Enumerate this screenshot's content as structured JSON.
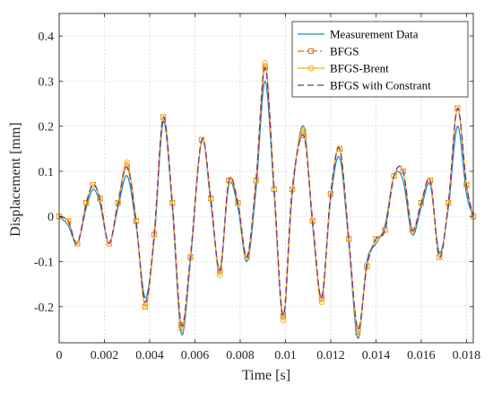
{
  "chart_data": {
    "type": "line",
    "xlabel": "Time [s]",
    "ylabel": "Displacement [mm]",
    "xlim": [
      0,
      0.0183
    ],
    "ylim": [
      -0.28,
      0.45
    ],
    "xticks": [
      0,
      0.002,
      0.004,
      0.006,
      0.008,
      0.01,
      0.012,
      0.014,
      0.016,
      0.018
    ],
    "xtick_labels": [
      "0",
      "0.002",
      "0.004",
      "0.006",
      "0.008",
      "0.01",
      "0.012",
      "0.014",
      "0.016",
      "0.018"
    ],
    "yticks": [
      -0.2,
      -0.1,
      0,
      0.1,
      0.2,
      0.3,
      0.4
    ],
    "ytick_labels": [
      "-0.2",
      "-0.1",
      "0",
      "0.1",
      "0.2",
      "0.3",
      "0.4"
    ],
    "grid": true,
    "legend_position": "top-right",
    "series": [
      {
        "name": "Measurement Data",
        "color": "#1a8fbf",
        "style": "solid",
        "marker": "none",
        "x": [
          0,
          0.0004,
          0.0008,
          0.0012,
          0.0015,
          0.0018,
          0.0022,
          0.0026,
          0.003,
          0.0034,
          0.0038,
          0.0042,
          0.0046,
          0.005,
          0.0054,
          0.0058,
          0.0063,
          0.0067,
          0.0071,
          0.0075,
          0.0079,
          0.0083,
          0.0087,
          0.0091,
          0.0095,
          0.0099,
          0.0103,
          0.0108,
          0.0112,
          0.0116,
          0.012,
          0.0124,
          0.0128,
          0.0132,
          0.0136,
          0.014,
          0.0144,
          0.0148,
          0.0152,
          0.0156,
          0.016,
          0.0164,
          0.0168,
          0.0172,
          0.0176,
          0.018,
          0.0183
        ],
        "y": [
          0,
          -0.02,
          -0.06,
          0.02,
          0.06,
          0.03,
          -0.06,
          0.02,
          0.09,
          -0.02,
          -0.18,
          -0.05,
          0.21,
          0.02,
          -0.26,
          -0.1,
          0.17,
          0.03,
          -0.12,
          0.07,
          0.02,
          -0.1,
          0.06,
          0.3,
          0.05,
          -0.23,
          0.05,
          0.2,
          -0.02,
          -0.18,
          0.04,
          0.13,
          -0.06,
          -0.27,
          -0.1,
          -0.06,
          -0.02,
          0.09,
          0.08,
          -0.04,
          0.02,
          0.07,
          -0.08,
          0.02,
          0.2,
          0.05,
          0
        ]
      },
      {
        "name": "BFGS",
        "color": "#e0701b",
        "style": "dashdot",
        "marker": "square",
        "x": [
          0,
          0.0004,
          0.0008,
          0.0012,
          0.0015,
          0.0018,
          0.0022,
          0.0026,
          0.003,
          0.0034,
          0.0038,
          0.0042,
          0.0046,
          0.005,
          0.0054,
          0.0058,
          0.0063,
          0.0067,
          0.0071,
          0.0075,
          0.0079,
          0.0083,
          0.0087,
          0.0091,
          0.0095,
          0.0099,
          0.0103,
          0.0108,
          0.0112,
          0.0116,
          0.012,
          0.0124,
          0.0128,
          0.0132,
          0.0136,
          0.014,
          0.0144,
          0.0148,
          0.0152,
          0.0156,
          0.016,
          0.0164,
          0.0168,
          0.0172,
          0.0176,
          0.018,
          0.0183
        ],
        "y": [
          0,
          -0.01,
          -0.06,
          0.03,
          0.07,
          0.04,
          -0.06,
          0.03,
          0.11,
          -0.01,
          -0.2,
          -0.04,
          0.22,
          0.03,
          -0.24,
          -0.09,
          0.17,
          0.04,
          -0.12,
          0.08,
          0.03,
          -0.09,
          0.08,
          0.33,
          0.06,
          -0.22,
          0.06,
          0.18,
          -0.01,
          -0.18,
          0.05,
          0.15,
          -0.05,
          -0.25,
          -0.11,
          -0.05,
          -0.03,
          0.09,
          0.1,
          -0.03,
          0.03,
          0.08,
          -0.09,
          0.03,
          0.24,
          0.07,
          0
        ]
      },
      {
        "name": "BFGS-Brent",
        "color": "#f2b21c",
        "style": "solid",
        "marker": "circle",
        "x": [
          0,
          0.0004,
          0.0008,
          0.0012,
          0.0015,
          0.0018,
          0.0022,
          0.0026,
          0.003,
          0.0034,
          0.0038,
          0.0042,
          0.0046,
          0.005,
          0.0054,
          0.0058,
          0.0063,
          0.0067,
          0.0071,
          0.0075,
          0.0079,
          0.0083,
          0.0087,
          0.0091,
          0.0095,
          0.0099,
          0.0103,
          0.0108,
          0.0112,
          0.0116,
          0.012,
          0.0124,
          0.0128,
          0.0132,
          0.0136,
          0.014,
          0.0144,
          0.0148,
          0.0152,
          0.0156,
          0.016,
          0.0164,
          0.0168,
          0.0172,
          0.0176,
          0.018,
          0.0183
        ],
        "y": [
          0,
          -0.01,
          -0.06,
          0.03,
          0.07,
          0.04,
          -0.06,
          0.03,
          0.12,
          -0.01,
          -0.2,
          -0.04,
          0.22,
          0.03,
          -0.25,
          -0.09,
          0.17,
          0.04,
          -0.13,
          0.08,
          0.03,
          -0.09,
          0.08,
          0.34,
          0.06,
          -0.23,
          0.06,
          0.19,
          -0.01,
          -0.19,
          0.05,
          0.15,
          -0.05,
          -0.26,
          -0.11,
          -0.05,
          -0.03,
          0.09,
          0.1,
          -0.03,
          0.03,
          0.08,
          -0.09,
          0.03,
          0.24,
          0.07,
          0
        ]
      },
      {
        "name": "BFGS with Constrant",
        "color": "#7e2f8e",
        "style": "dashed",
        "marker": "none",
        "x": [
          0,
          0.0004,
          0.0008,
          0.0012,
          0.0015,
          0.0018,
          0.0022,
          0.0026,
          0.003,
          0.0034,
          0.0038,
          0.0042,
          0.0046,
          0.005,
          0.0054,
          0.0058,
          0.0063,
          0.0067,
          0.0071,
          0.0075,
          0.0079,
          0.0083,
          0.0087,
          0.0091,
          0.0095,
          0.0099,
          0.0103,
          0.0108,
          0.0112,
          0.0116,
          0.012,
          0.0124,
          0.0128,
          0.0132,
          0.0136,
          0.014,
          0.0144,
          0.0148,
          0.0152,
          0.0156,
          0.016,
          0.0164,
          0.0168,
          0.0172,
          0.0176,
          0.018,
          0.0183
        ],
        "y": [
          0,
          -0.01,
          -0.06,
          0.03,
          0.07,
          0.04,
          -0.06,
          0.03,
          0.11,
          -0.01,
          -0.19,
          -0.04,
          0.22,
          0.03,
          -0.24,
          -0.09,
          0.17,
          0.04,
          -0.12,
          0.08,
          0.03,
          -0.09,
          0.08,
          0.33,
          0.06,
          -0.22,
          0.06,
          0.18,
          -0.01,
          -0.18,
          0.05,
          0.15,
          -0.05,
          -0.25,
          -0.11,
          -0.05,
          -0.03,
          0.09,
          0.1,
          -0.03,
          0.03,
          0.08,
          -0.09,
          0.03,
          0.24,
          0.07,
          0
        ]
      }
    ]
  }
}
